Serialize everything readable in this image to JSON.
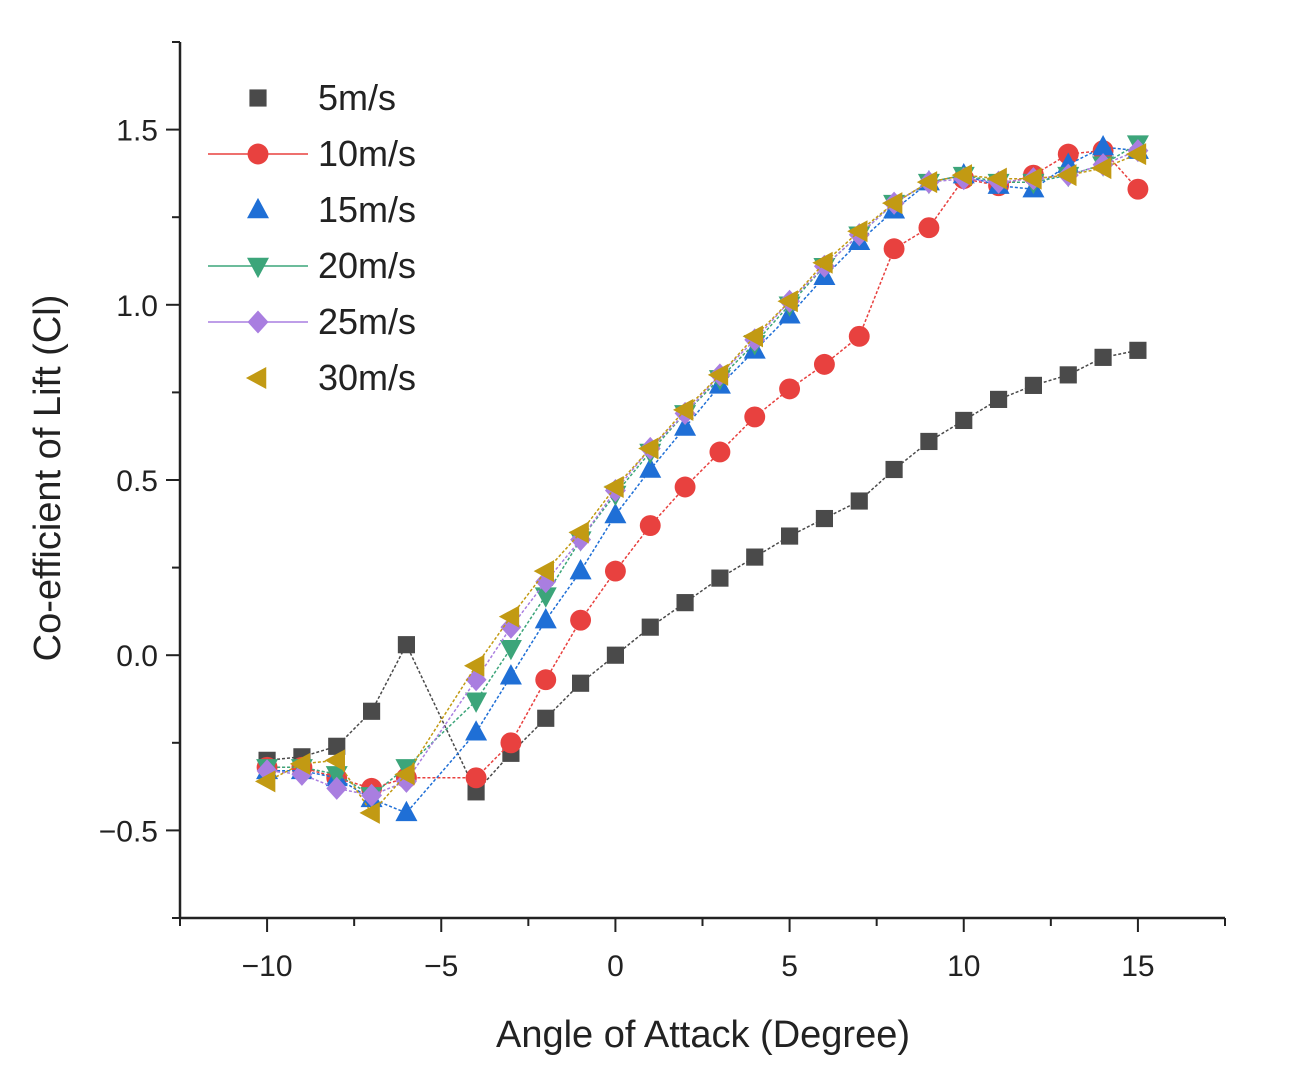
{
  "chart_data": {
    "type": "scatter",
    "title": "",
    "xlabel": "Angle of Attack (Degree)",
    "ylabel": "Co-efficient of Lift (Cl)",
    "xlim": [
      -12.5,
      17.5
    ],
    "ylim": [
      -0.75,
      1.75
    ],
    "xticks": [
      -10,
      -5,
      0,
      5,
      10,
      15
    ],
    "xtick_labels": [
      "−10",
      "−5",
      "0",
      "5",
      "10",
      "15"
    ],
    "yticks": [
      -0.5,
      0.0,
      0.5,
      1.0,
      1.5
    ],
    "ytick_labels": [
      "−0.5",
      "0.0",
      "0.5",
      "1.0",
      "1.5"
    ],
    "grid": false,
    "legend_position": "top-left",
    "series": [
      {
        "name": "5m/s",
        "marker": "square",
        "color": "#4a4a4a",
        "x": [
          -10,
          -9,
          -8,
          -7,
          -6,
          -4,
          -3,
          -2,
          -1,
          0,
          1,
          2,
          3,
          4,
          5,
          6,
          7,
          8,
          9,
          10,
          11,
          12,
          13,
          14,
          15
        ],
        "y": [
          -0.3,
          -0.29,
          -0.26,
          -0.16,
          0.03,
          -0.39,
          -0.28,
          -0.18,
          -0.08,
          0.0,
          0.08,
          0.15,
          0.22,
          0.28,
          0.34,
          0.39,
          0.44,
          0.53,
          0.61,
          0.67,
          0.73,
          0.77,
          0.8,
          0.85,
          0.87
        ]
      },
      {
        "name": "10m/s",
        "marker": "circle",
        "color": "#e8413f",
        "x": [
          -10,
          -9,
          -8,
          -7,
          -6,
          -4,
          -3,
          -2,
          -1,
          0,
          1,
          2,
          3,
          4,
          5,
          6,
          7,
          8,
          9,
          10,
          11,
          12,
          13,
          14,
          15
        ],
        "y": [
          -0.32,
          -0.32,
          -0.35,
          -0.38,
          -0.35,
          -0.35,
          -0.25,
          -0.07,
          0.1,
          0.24,
          0.37,
          0.48,
          0.58,
          0.68,
          0.76,
          0.83,
          0.91,
          1.16,
          1.22,
          1.36,
          1.34,
          1.37,
          1.43,
          1.44,
          1.33
        ]
      },
      {
        "name": "15m/s",
        "marker": "triangle-up",
        "color": "#1f6fd6",
        "x": [
          -10,
          -9,
          -8,
          -7,
          -6,
          -4,
          -3,
          -2,
          -1,
          0,
          1,
          2,
          3,
          4,
          5,
          6,
          7,
          8,
          9,
          10,
          11,
          12,
          13,
          14,
          15
        ],
        "y": [
          -0.33,
          -0.33,
          -0.35,
          -0.41,
          -0.45,
          -0.22,
          -0.06,
          0.1,
          0.24,
          0.4,
          0.53,
          0.65,
          0.77,
          0.87,
          0.97,
          1.08,
          1.18,
          1.27,
          1.35,
          1.37,
          1.34,
          1.33,
          1.4,
          1.45,
          1.44
        ]
      },
      {
        "name": "20m/s",
        "marker": "triangle-down",
        "color": "#3ca57a",
        "x": [
          -10,
          -9,
          -8,
          -7,
          -6,
          -4,
          -3,
          -2,
          -1,
          0,
          1,
          2,
          3,
          4,
          5,
          6,
          7,
          8,
          9,
          10,
          11,
          12,
          13,
          14,
          15
        ],
        "y": [
          -0.32,
          -0.32,
          -0.34,
          -0.4,
          -0.32,
          -0.13,
          0.02,
          0.17,
          0.33,
          0.46,
          0.58,
          0.69,
          0.79,
          0.89,
          1.0,
          1.11,
          1.2,
          1.29,
          1.35,
          1.37,
          1.35,
          1.35,
          1.37,
          1.4,
          1.46
        ]
      },
      {
        "name": "25m/s",
        "marker": "diamond",
        "color": "#a97ee0",
        "x": [
          -10,
          -9,
          -8,
          -7,
          -6,
          -4,
          -3,
          -2,
          -1,
          0,
          1,
          2,
          3,
          4,
          5,
          6,
          7,
          8,
          9,
          10,
          11,
          12,
          13,
          14,
          15
        ],
        "y": [
          -0.33,
          -0.34,
          -0.38,
          -0.4,
          -0.36,
          -0.07,
          0.08,
          0.21,
          0.33,
          0.47,
          0.59,
          0.69,
          0.8,
          0.9,
          1.01,
          1.11,
          1.2,
          1.29,
          1.35,
          1.36,
          1.35,
          1.36,
          1.37,
          1.4,
          1.44
        ]
      },
      {
        "name": "30m/s",
        "marker": "triangle-left",
        "color": "#c29a13",
        "x": [
          -10,
          -9,
          -8,
          -7,
          -6,
          -4,
          -3,
          -2,
          -1,
          0,
          1,
          2,
          3,
          4,
          5,
          6,
          7,
          8,
          9,
          10,
          11,
          12,
          13,
          14,
          15
        ],
        "y": [
          -0.36,
          -0.31,
          -0.3,
          -0.45,
          -0.34,
          -0.03,
          0.11,
          0.24,
          0.35,
          0.48,
          0.59,
          0.7,
          0.8,
          0.91,
          1.01,
          1.12,
          1.21,
          1.29,
          1.35,
          1.37,
          1.36,
          1.36,
          1.37,
          1.39,
          1.43
        ]
      }
    ]
  }
}
